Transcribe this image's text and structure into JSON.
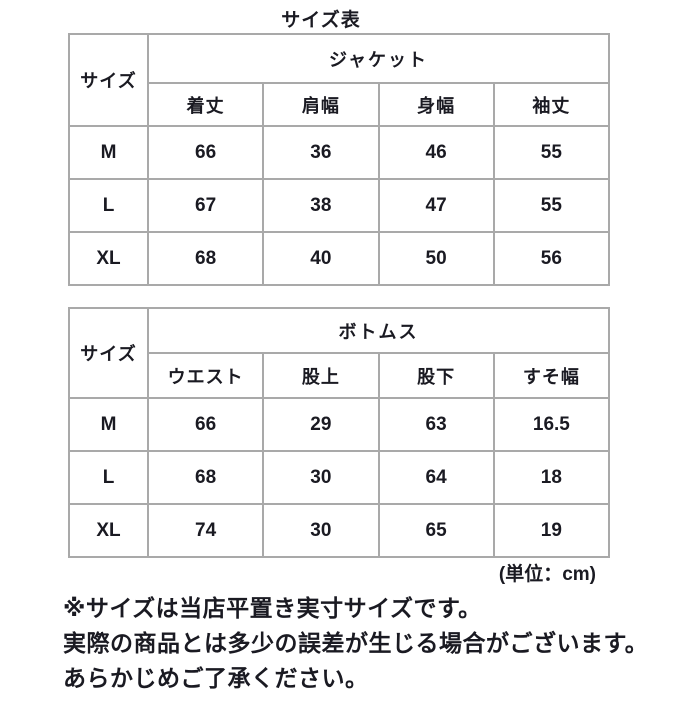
{
  "page": {
    "title": "サイズ表",
    "unit_note": "(単位：cm)",
    "colors": {
      "background": "#ffffff",
      "text": "#1a1a22",
      "table_border": "#a9a9a9"
    }
  },
  "tables": [
    {
      "id": "jacket",
      "size_header": "サイズ",
      "group_header": "ジャケット",
      "columns": [
        "着丈",
        "肩幅",
        "身幅",
        "袖丈"
      ],
      "rows": [
        {
          "size": "M",
          "values": [
            "66",
            "36",
            "46",
            "55"
          ]
        },
        {
          "size": "L",
          "values": [
            "67",
            "38",
            "47",
            "55"
          ]
        },
        {
          "size": "XL",
          "values": [
            "68",
            "40",
            "50",
            "56"
          ]
        }
      ]
    },
    {
      "id": "bottoms",
      "size_header": "サイズ",
      "group_header": "ボトムス",
      "columns": [
        "ウエスト",
        "股上",
        "股下",
        "すそ幅"
      ],
      "rows": [
        {
          "size": "M",
          "values": [
            "66",
            "29",
            "63",
            "16.5"
          ]
        },
        {
          "size": "L",
          "values": [
            "68",
            "30",
            "64",
            "18"
          ]
        },
        {
          "size": "XL",
          "values": [
            "74",
            "30",
            "65",
            "19"
          ]
        }
      ]
    }
  ],
  "notes": {
    "line1": "※サイズは当店平置き実寸サイズです。",
    "line2": "実際の商品とは多少の誤差が生じる場合がございます。",
    "line3": "あらかじめご了承ください。"
  }
}
